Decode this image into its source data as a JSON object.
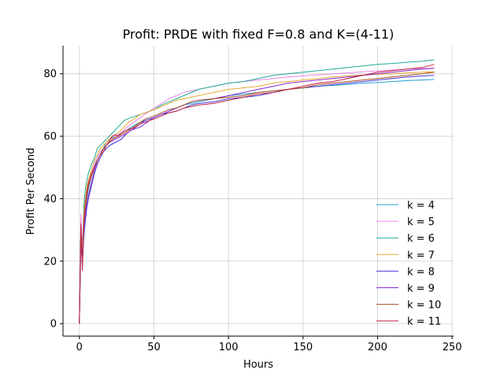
{
  "chart_data": {
    "type": "line",
    "title": "Profit: PRDE with fixed F=0.8 and K=(4-11)",
    "xlabel": "Hours",
    "ylabel": "Profit Per Second",
    "xlim": [
      -11,
      251
    ],
    "ylim": [
      -4,
      89
    ],
    "xticks": [
      0,
      50,
      100,
      150,
      200,
      250
    ],
    "yticks": [
      0,
      20,
      40,
      60,
      80
    ],
    "grid": true,
    "legend_position": "center-right",
    "x": [
      0,
      1,
      2,
      3,
      4,
      5,
      6,
      8,
      10,
      12,
      14,
      16,
      18,
      20,
      22,
      24,
      26,
      28,
      30,
      32,
      35,
      38,
      41,
      44,
      47,
      50,
      55,
      60,
      65,
      70,
      75,
      80,
      90,
      100,
      110,
      120,
      130,
      140,
      150,
      160,
      170,
      180,
      190,
      200,
      210,
      220,
      230,
      238
    ],
    "series": [
      {
        "name": "k = 4",
        "color": "#1f9fd0",
        "values": [
          0,
          32,
          18,
          30,
          36,
          40,
          43,
          47,
          50,
          53,
          55,
          56,
          58,
          59,
          59.5,
          60,
          60.5,
          61,
          61.5,
          62,
          63,
          63.8,
          64.5,
          65,
          65.5,
          66,
          67,
          68,
          69,
          70,
          70.5,
          71,
          72,
          73,
          73.5,
          74,
          74.5,
          75,
          75.5,
          76,
          76.3,
          76.6,
          77,
          77.2,
          77.5,
          77.8,
          78,
          78.2
        ]
      },
      {
        "name": "k = 5",
        "color": "#e88ae8",
        "values": [
          0,
          35,
          25,
          33,
          38,
          42,
          45,
          48,
          51,
          53,
          55,
          56,
          57,
          58,
          59,
          60,
          60.5,
          61,
          62,
          63,
          64,
          65,
          66,
          67,
          68,
          69,
          70.5,
          72,
          73,
          74,
          74.5,
          75,
          76,
          77,
          77.5,
          78,
          78.5,
          79,
          79.3,
          79.6,
          80,
          80.3,
          80.6,
          80.9,
          81.2,
          81.5,
          81.7,
          81.8
        ]
      },
      {
        "name": "k = 6",
        "color": "#1faa96",
        "values": [
          0,
          30,
          22,
          38,
          43,
          46,
          48,
          51,
          53,
          56,
          57,
          58,
          59,
          60,
          61,
          62,
          63,
          64,
          65,
          65.5,
          66,
          66.5,
          67,
          67.5,
          68,
          68.5,
          70,
          71,
          72,
          73,
          74,
          75,
          76,
          77,
          77.5,
          78.5,
          79.5,
          80,
          80.5,
          81,
          81.5,
          82,
          82.5,
          83,
          83.3,
          83.7,
          84,
          84.5
        ]
      },
      {
        "name": "k = 7",
        "color": "#e6a830",
        "values": [
          0,
          28,
          22,
          35,
          40,
          44,
          46,
          49,
          52,
          54,
          56,
          57,
          58,
          59,
          60,
          60.5,
          61,
          62,
          63,
          64,
          65,
          66,
          67,
          67.5,
          68,
          68.5,
          69.5,
          70.5,
          71.5,
          72,
          72.5,
          73,
          74,
          75,
          75.5,
          76,
          77,
          77.5,
          78,
          78.5,
          79,
          79.3,
          79.6,
          79.8,
          80,
          80.3,
          80.5,
          80.6
        ]
      },
      {
        "name": "k = 8",
        "color": "#4438d8",
        "values": [
          0,
          25,
          20,
          28,
          33,
          37,
          40,
          44,
          48,
          51,
          53,
          55,
          56,
          57,
          57.5,
          58,
          58.5,
          59,
          60,
          61,
          62,
          63,
          64,
          65,
          65.5,
          66,
          67,
          67.5,
          68,
          69,
          70,
          70.5,
          71,
          72,
          72.5,
          73,
          74,
          75,
          75.5,
          76,
          76.5,
          77,
          77.5,
          78,
          78.5,
          79,
          79.3,
          79.5
        ]
      },
      {
        "name": "k = 9",
        "color": "#8a2ad0",
        "values": [
          0,
          30,
          20,
          30,
          35,
          38,
          41,
          45,
          49,
          52,
          54,
          56,
          57,
          58,
          58.5,
          59,
          59.5,
          60,
          60.5,
          61,
          62,
          62.5,
          63,
          64,
          65,
          66,
          67,
          68,
          69,
          70,
          71,
          71.5,
          72,
          73,
          74,
          75,
          76,
          77,
          77.5,
          78,
          78.5,
          79,
          79.5,
          80,
          80.5,
          81,
          81.5,
          81.8
        ]
      },
      {
        "name": "k = 10",
        "color": "#a84e22",
        "values": [
          0,
          31,
          19,
          32,
          37,
          41,
          44,
          47,
          50,
          52,
          54,
          56,
          57,
          58,
          59,
          59.5,
          60,
          60.5,
          61,
          61.5,
          62.5,
          63.5,
          64.5,
          65.5,
          66,
          66.5,
          67.5,
          68.5,
          69,
          70,
          71,
          71.5,
          72,
          72.5,
          73,
          74,
          74.5,
          75,
          75.5,
          76.5,
          77,
          77.5,
          78,
          78.5,
          79,
          79.5,
          80,
          80.5
        ]
      },
      {
        "name": "k = 11",
        "color": "#c02040",
        "values": [
          0,
          32,
          17,
          33,
          38,
          42,
          45,
          48,
          50,
          52,
          54,
          55,
          57,
          58.5,
          60,
          60.5,
          60,
          61,
          61.5,
          62,
          62.5,
          63,
          64,
          64.5,
          65,
          65.5,
          66.5,
          67.5,
          68,
          69,
          69.5,
          70,
          70.5,
          71.5,
          72.5,
          73.5,
          74,
          75,
          76,
          77,
          77.5,
          78.5,
          79.5,
          80.5,
          81,
          81.5,
          82,
          83
        ]
      }
    ]
  }
}
